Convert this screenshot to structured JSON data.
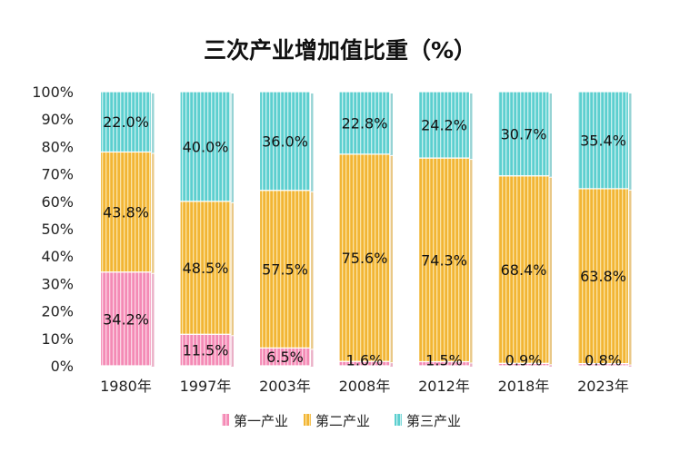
{
  "chart_data": {
    "type": "bar",
    "stacked": true,
    "title": "三次产业增加值比重（%）",
    "categories": [
      "1980年",
      "1997年",
      "2003年",
      "2008年",
      "2012年",
      "2018年",
      "2023年"
    ],
    "series": [
      {
        "name": "第一产业",
        "values": [
          34.2,
          11.5,
          6.5,
          1.6,
          1.5,
          0.9,
          0.8
        ],
        "labels": [
          "34.2%",
          "11.5%",
          "6.5%",
          "1.6%",
          "1.5%",
          "0.9%",
          "0.8%"
        ],
        "color": "#F27FAE"
      },
      {
        "name": "第二产业",
        "values": [
          43.8,
          48.5,
          57.5,
          75.6,
          74.3,
          68.4,
          63.8
        ],
        "labels": [
          "43.8%",
          "48.5%",
          "57.5%",
          "75.6%",
          "74.3%",
          "68.4%",
          "63.8%"
        ],
        "color": "#F2B534"
      },
      {
        "name": "第三产业",
        "values": [
          22.0,
          40.0,
          36.0,
          22.8,
          24.2,
          30.7,
          35.4
        ],
        "labels": [
          "22.0%",
          "40.0%",
          "36.0%",
          "22.8%",
          "24.2%",
          "30.7%",
          "35.4%"
        ],
        "color": "#5CCFCF"
      }
    ],
    "ylim": [
      0,
      100
    ],
    "yticks": [
      "0%",
      "10%",
      "20%",
      "30%",
      "40%",
      "50%",
      "60%",
      "70%",
      "80%",
      "90%",
      "100%"
    ],
    "grid": false,
    "legend_position": "bottom"
  }
}
